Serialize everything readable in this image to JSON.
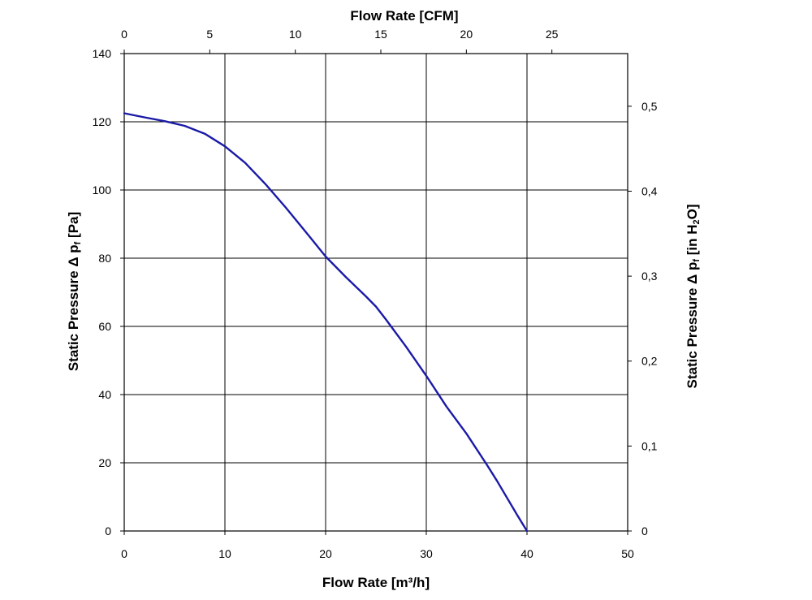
{
  "chart_data": {
    "type": "line",
    "xlabel": "Flow Rate [m³/h]",
    "ylabel": "Static Pressure Δ p",
    "ylabel_sub": "f",
    "ylabel_unit": " [Pa]",
    "x2label": "Flow Rate [CFM]",
    "y2label": "Static Pressure Δ p",
    "y2label_sub": "f",
    "y2label_unit": " [in H",
    "y2label_unit_sub": "2",
    "y2label_unit_end": "O]",
    "xlim": [
      0,
      50
    ],
    "ylim": [
      0,
      140
    ],
    "x2lim": [
      0,
      29.43
    ],
    "y2lim": [
      0,
      0.562
    ],
    "xticks": [
      "0",
      "10",
      "20",
      "30",
      "40",
      "50"
    ],
    "yticks": [
      "0",
      "20",
      "40",
      "60",
      "80",
      "100",
      "120",
      "140"
    ],
    "x2ticks": [
      "0",
      "5",
      "10",
      "15",
      "20",
      "25"
    ],
    "y2ticks": [
      "0",
      "0,1",
      "0,2",
      "0,3",
      "0,4",
      "0,5"
    ],
    "grid": true,
    "line_color": "#1a1aa8",
    "series": [
      {
        "x": [
          0,
          2,
          4,
          6,
          8,
          10,
          12,
          14,
          16,
          18,
          20,
          22,
          24,
          25,
          26,
          28,
          30,
          32,
          34,
          36,
          37,
          38,
          39,
          40
        ],
        "values": [
          122.5,
          121.3,
          120.2,
          118.8,
          116.5,
          112.8,
          108,
          101.8,
          95,
          87.8,
          80.5,
          74.5,
          68.8,
          65.8,
          62,
          54,
          45.5,
          36.5,
          28.5,
          19.5,
          14.8,
          9.8,
          4.8,
          0
        ]
      }
    ]
  }
}
